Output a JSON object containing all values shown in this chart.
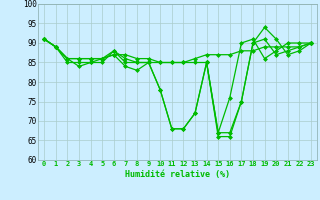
{
  "xlabel": "Humidité relative (%)",
  "x": [
    0,
    1,
    2,
    3,
    4,
    5,
    6,
    7,
    8,
    9,
    10,
    11,
    12,
    13,
    14,
    15,
    16,
    17,
    18,
    19,
    20,
    21,
    22,
    23
  ],
  "series": [
    [
      91,
      89,
      85,
      85,
      85,
      85,
      88,
      85,
      85,
      85,
      78,
      68,
      68,
      72,
      85,
      67,
      67,
      75,
      90,
      94,
      91,
      87,
      88,
      90
    ],
    [
      91,
      89,
      86,
      84,
      85,
      86,
      88,
      86,
      85,
      85,
      78,
      68,
      68,
      72,
      85,
      67,
      76,
      90,
      91,
      86,
      88,
      90,
      90,
      90
    ],
    [
      91,
      89,
      86,
      86,
      86,
      86,
      87,
      87,
      86,
      86,
      85,
      85,
      85,
      86,
      87,
      87,
      87,
      88,
      88,
      89,
      89,
      89,
      89,
      90
    ],
    [
      91,
      89,
      86,
      86,
      86,
      86,
      87,
      84,
      83,
      85,
      85,
      85,
      85,
      85,
      85,
      66,
      66,
      75,
      90,
      91,
      87,
      88,
      89,
      90
    ]
  ],
  "line_color": "#00bb00",
  "marker": "D",
  "marker_size": 2.0,
  "bg_color": "#cceeff",
  "grid_color": "#aacccc",
  "ylim": [
    60,
    100
  ],
  "yticks": [
    60,
    65,
    70,
    75,
    80,
    85,
    90,
    95,
    100
  ],
  "xlim": [
    -0.5,
    23.5
  ],
  "xticks": [
    0,
    1,
    2,
    3,
    4,
    5,
    6,
    7,
    8,
    9,
    10,
    11,
    12,
    13,
    14,
    15,
    16,
    17,
    18,
    19,
    20,
    21,
    22,
    23
  ],
  "xlabel_fontsize": 6.0,
  "tick_fontsize": 5.0,
  "ytick_fontsize": 5.5,
  "linewidth": 0.9
}
